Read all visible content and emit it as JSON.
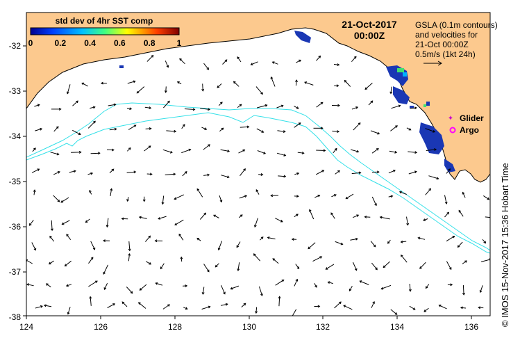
{
  "map": {
    "date": "21-Oct-2017",
    "time": "00:00Z",
    "colorbar": {
      "title": "std dev of 4hr SST comp",
      "ticks": [
        "0",
        "0.2",
        "0.4",
        "0.6",
        "0.8",
        "1"
      ]
    },
    "gsla_note": [
      "GSLA (0.1m contours)",
      "and velocities for",
      "21-Oct 00:00Z",
      "0.5m/s (1kt 24h)"
    ],
    "legend": {
      "glider": "Glider",
      "argo": "Argo",
      "glider_color": "#cc00cc",
      "argo_color": "#ff00ff"
    },
    "credit": "© IMOS 15-Nov-2017 15:36 Hobart Time",
    "x_ticks": [
      "124",
      "126",
      "128",
      "130",
      "132",
      "134",
      "136"
    ],
    "y_ticks": [
      "-32",
      "-33",
      "-34",
      "-35",
      "-36",
      "-37",
      "-38"
    ],
    "colors": {
      "land": "#fcc98e",
      "contour": "#33e0e8",
      "sst_low": "#1a37b4",
      "arrow": "#000000"
    }
  }
}
